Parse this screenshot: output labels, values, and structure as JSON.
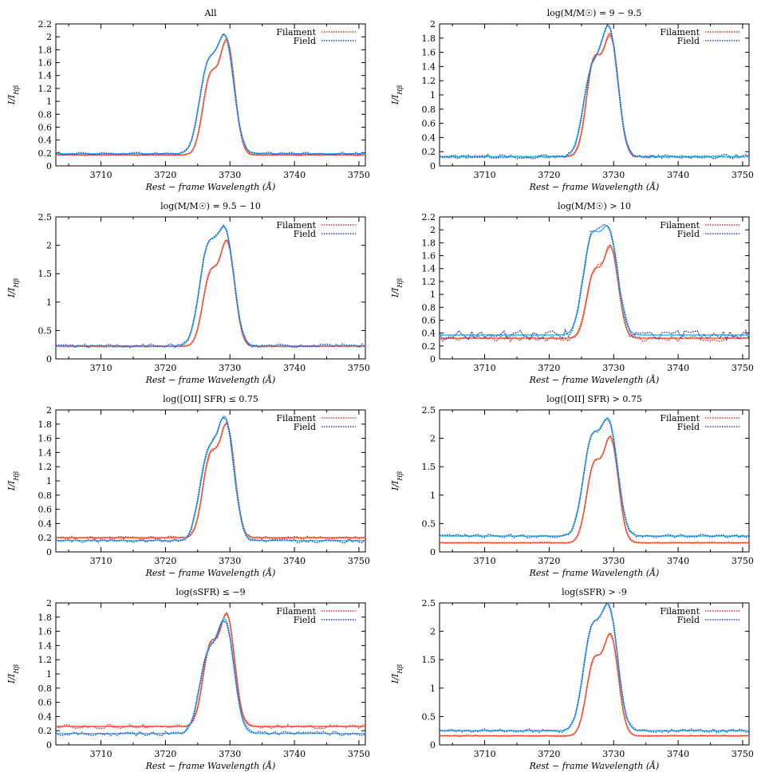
{
  "figure": {
    "xlabel": "Rest − frame  Wavelength (Å)",
    "ylabel": "I/I",
    "ylabel_sub": "Hβ",
    "legend": [
      "Filament",
      "Field"
    ],
    "colors": {
      "filament_data": "#e0392b",
      "filament_fit": "#ff6a3d",
      "field_data": "#1f3fd6",
      "field_fit": "#36c6f2"
    }
  },
  "chart_data": [
    {
      "type": "line",
      "title": "All",
      "xlim": [
        3703,
        3751
      ],
      "xticks": [
        3710,
        3720,
        3730,
        3740,
        3750
      ],
      "ylim": [
        0,
        2.2
      ],
      "yticks": [
        "0",
        "0.2",
        "0.4",
        "0.6",
        "0.8",
        "1",
        "1.2",
        "1.4",
        "1.6",
        "1.8",
        "2",
        "2.2"
      ],
      "series": [
        {
          "name": "Filament",
          "base": 0.17,
          "noise": 0.01,
          "peak1": 1.44,
          "peak2": 1.95
        },
        {
          "name": "Field",
          "base": 0.19,
          "noise": 0.02,
          "peak1": 1.62,
          "peak2": 2.01
        }
      ]
    },
    {
      "type": "line",
      "title": "log(M/M☉) = 9 − 9.5",
      "xlim": [
        3703,
        3751
      ],
      "xticks": [
        3710,
        3720,
        3730,
        3740,
        3750
      ],
      "ylim": [
        0,
        2
      ],
      "yticks": [
        "0",
        "0.2",
        "0.4",
        "0.6",
        "0.8",
        "1",
        "1.2",
        "1.4",
        "1.6",
        "1.8",
        "2"
      ],
      "series": [
        {
          "name": "Filament",
          "base": 0.13,
          "noise": 0.02,
          "peak1": 1.53,
          "peak2": 1.85
        },
        {
          "name": "Field",
          "base": 0.13,
          "noise": 0.03,
          "peak1": 1.4,
          "peak2": 1.96
        }
      ]
    },
    {
      "type": "line",
      "title": "log(M/M☉) = 9.5 − 10",
      "xlim": [
        3703,
        3751
      ],
      "xticks": [
        3710,
        3720,
        3730,
        3740,
        3750
      ],
      "ylim": [
        0,
        2.5
      ],
      "yticks": [
        "0",
        "0.5",
        "1",
        "1.5",
        "2",
        "2.5"
      ],
      "series": [
        {
          "name": "Filament",
          "base": 0.22,
          "noise": 0.01,
          "peak1": 1.55,
          "peak2": 2.08
        },
        {
          "name": "Field",
          "base": 0.23,
          "noise": 0.03,
          "peak1": 2.02,
          "peak2": 2.3
        }
      ]
    },
    {
      "type": "line",
      "title": "log(M/M☉) > 10",
      "xlim": [
        3703,
        3751
      ],
      "xticks": [
        3710,
        3720,
        3730,
        3740,
        3750
      ],
      "ylim": [
        0,
        2.2
      ],
      "yticks": [
        "0",
        "0.2",
        "0.4",
        "0.6",
        "0.8",
        "1",
        "1.2",
        "1.4",
        "1.6",
        "1.8",
        "2",
        "2.2"
      ],
      "series": [
        {
          "name": "Filament",
          "base": 0.32,
          "noise": 0.05,
          "peak1": 1.37,
          "peak2": 1.73
        },
        {
          "name": "Field",
          "base": 0.37,
          "noise": 0.07,
          "peak1": 1.92,
          "peak2": 2.02
        }
      ]
    },
    {
      "type": "line",
      "title": "log([OII] SFR) ≤ 0.75",
      "xlim": [
        3703,
        3751
      ],
      "xticks": [
        3710,
        3720,
        3730,
        3740,
        3750
      ],
      "ylim": [
        0,
        2
      ],
      "yticks": [
        "0",
        "0.2",
        "0.4",
        "0.6",
        "0.8",
        "1",
        "1.2",
        "1.4",
        "1.6",
        "1.8",
        "2"
      ],
      "series": [
        {
          "name": "Filament",
          "base": 0.2,
          "noise": 0.02,
          "peak1": 1.4,
          "peak2": 1.8
        },
        {
          "name": "Field",
          "base": 0.16,
          "noise": 0.03,
          "peak1": 1.43,
          "peak2": 1.89
        }
      ]
    },
    {
      "type": "line",
      "title": "log([OII] SFR) > 0.75",
      "xlim": [
        3703,
        3751
      ],
      "xticks": [
        3710,
        3720,
        3730,
        3740,
        3750
      ],
      "ylim": [
        0,
        2.5
      ],
      "yticks": [
        "0",
        "0.5",
        "1",
        "1.5",
        "2",
        "2.5"
      ],
      "series": [
        {
          "name": "Filament",
          "base": 0.16,
          "noise": 0.01,
          "peak1": 1.58,
          "peak2": 2.02
        },
        {
          "name": "Field",
          "base": 0.28,
          "noise": 0.03,
          "peak1": 2.03,
          "peak2": 2.32
        }
      ]
    },
    {
      "type": "line",
      "title": "log(sSFR) ≤ −9",
      "xlim": [
        3703,
        3751
      ],
      "xticks": [
        3710,
        3720,
        3730,
        3740,
        3750
      ],
      "ylim": [
        0,
        2
      ],
      "yticks": [
        "0",
        "0.2",
        "0.4",
        "0.6",
        "0.8",
        "1",
        "1.2",
        "1.4",
        "1.6",
        "1.8",
        "2"
      ],
      "series": [
        {
          "name": "Filament",
          "base": 0.26,
          "noise": 0.03,
          "peak1": 1.44,
          "peak2": 1.84
        },
        {
          "name": "Field",
          "base": 0.16,
          "noise": 0.03,
          "peak1": 1.32,
          "peak2": 1.76
        }
      ]
    },
    {
      "type": "line",
      "title": "log(sSFR) > -9",
      "xlim": [
        3703,
        3751
      ],
      "xticks": [
        3710,
        3720,
        3730,
        3740,
        3750
      ],
      "ylim": [
        0,
        2.5
      ],
      "yticks": [
        "0",
        "0.5",
        "1",
        "1.5",
        "2",
        "2.5"
      ],
      "series": [
        {
          "name": "Filament",
          "base": 0.16,
          "noise": 0.01,
          "peak1": 1.53,
          "peak2": 1.95
        },
        {
          "name": "Field",
          "base": 0.25,
          "noise": 0.03,
          "peak1": 2.08,
          "peak2": 2.45
        }
      ]
    }
  ]
}
